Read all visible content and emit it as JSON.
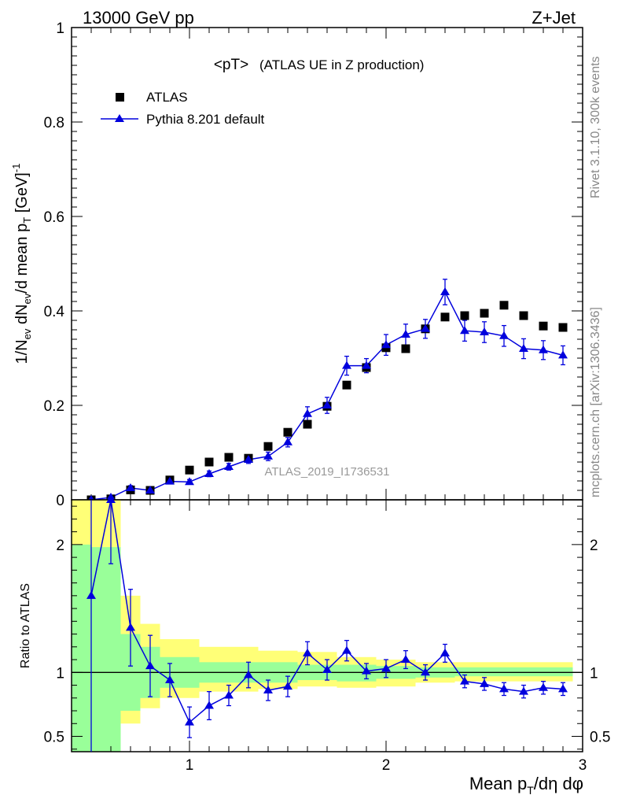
{
  "header": {
    "left": "13000 GeV pp",
    "right": "Z+Jet"
  },
  "title": "<pT>",
  "subtitle": "(ATLAS UE in Z production)",
  "watermark": "ATLAS_2019_I1736531",
  "side_top": "Rivet 3.1.10,  300k events",
  "side_bottom": "mcplots.cern.ch [arXiv:1306.3436]",
  "colors": {
    "mc": "#0000dd",
    "yellow": "#ffff77",
    "green": "#99ff99",
    "data": "#000000"
  },
  "chart_data": [
    {
      "type": "scatter",
      "ylabel": "1/N_ev dN_ev/d mean p_T [GeV]^-1",
      "ylim": [
        0,
        1
      ],
      "xlim": [
        0.4,
        3.0
      ],
      "yticks": [
        0,
        0.2,
        0.4,
        0.6,
        0.8,
        1
      ],
      "ytick_labels": [
        "0",
        "0.2",
        "0.4",
        "0.6",
        "0.8",
        "1"
      ],
      "legend": {
        "position": "top-left",
        "entries": [
          "ATLAS",
          "Pythia 8.201 default"
        ]
      },
      "x": [
        0.5,
        0.6,
        0.7,
        0.8,
        0.9,
        1.0,
        1.1,
        1.2,
        1.3,
        1.4,
        1.5,
        1.6,
        1.7,
        1.8,
        1.9,
        2.0,
        2.1,
        2.2,
        2.3,
        2.4,
        2.5,
        2.6,
        2.7,
        2.8,
        2.9
      ],
      "series": [
        {
          "name": "ATLAS",
          "values": [
            0.0,
            0.002,
            0.021,
            0.02,
            0.042,
            0.063,
            0.08,
            0.09,
            0.088,
            0.113,
            0.143,
            0.16,
            0.198,
            0.243,
            0.28,
            0.322,
            0.32,
            0.362,
            0.387,
            0.39,
            0.395,
            0.412,
            0.39,
            0.368,
            0.365
          ]
        },
        {
          "name": "Pythia 8.201 default",
          "values": [
            0.0,
            0.005,
            0.025,
            0.02,
            0.039,
            0.038,
            0.055,
            0.07,
            0.085,
            0.092,
            0.122,
            0.182,
            0.2,
            0.284,
            0.284,
            0.328,
            0.35,
            0.362,
            0.44,
            0.358,
            0.355,
            0.347,
            0.32,
            0.317,
            0.306
          ],
          "errors": [
            0.0,
            0.002,
            0.005,
            0.004,
            0.005,
            0.005,
            0.006,
            0.007,
            0.008,
            0.009,
            0.01,
            0.015,
            0.017,
            0.02,
            0.015,
            0.022,
            0.022,
            0.02,
            0.027,
            0.022,
            0.022,
            0.022,
            0.021,
            0.02,
            0.02
          ]
        }
      ]
    },
    {
      "type": "line",
      "xlabel": "Mean p_T/dη dφ",
      "ylabel": "Ratio to ATLAS",
      "ylim": [
        0.38,
        2.35
      ],
      "xlim": [
        0.4,
        3.0
      ],
      "xticks": [
        1,
        2,
        3
      ],
      "xtick_labels": [
        "1",
        "2",
        "3"
      ],
      "yticks": [
        0.5,
        1,
        2
      ],
      "ytick_labels": [
        "0.5",
        "1",
        "2"
      ],
      "x": [
        0.5,
        0.6,
        0.7,
        0.8,
        0.9,
        1.0,
        1.1,
        1.2,
        1.3,
        1.4,
        1.5,
        1.6,
        1.7,
        1.8,
        1.9,
        2.0,
        2.1,
        2.2,
        2.3,
        2.4,
        2.5,
        2.6,
        2.7,
        2.8,
        2.9
      ],
      "ratio": [
        1.6,
        2.35,
        1.35,
        1.05,
        0.94,
        0.61,
        0.74,
        0.82,
        0.98,
        0.86,
        0.89,
        1.15,
        1.02,
        1.17,
        1.01,
        1.03,
        1.1,
        1.0,
        1.15,
        0.93,
        0.91,
        0.87,
        0.85,
        0.88,
        0.87
      ],
      "ratio_errors": [
        1.3,
        0.5,
        0.3,
        0.24,
        0.13,
        0.12,
        0.11,
        0.08,
        0.1,
        0.08,
        0.08,
        0.09,
        0.08,
        0.08,
        0.06,
        0.07,
        0.07,
        0.06,
        0.07,
        0.05,
        0.05,
        0.05,
        0.05,
        0.05,
        0.05
      ],
      "band_green": [
        [
          0.4,
          0.5,
          0.3,
          2.0
        ],
        [
          0.5,
          0.6,
          0.3,
          1.98
        ],
        [
          0.6,
          0.65,
          0.3,
          1.98
        ],
        [
          0.65,
          0.75,
          0.7,
          1.3
        ],
        [
          0.75,
          0.85,
          0.8,
          1.2
        ],
        [
          0.85,
          1.05,
          0.88,
          1.12
        ],
        [
          1.05,
          1.55,
          0.92,
          1.08
        ],
        [
          1.55,
          1.75,
          0.94,
          1.06
        ],
        [
          1.75,
          1.95,
          0.93,
          1.06
        ],
        [
          1.95,
          2.15,
          0.95,
          1.05
        ],
        [
          2.15,
          2.35,
          0.96,
          1.04
        ],
        [
          2.35,
          2.95,
          0.97,
          1.04
        ]
      ],
      "band_yellow": [
        [
          0.4,
          0.65,
          0.3,
          2.35
        ],
        [
          0.65,
          0.75,
          0.6,
          1.6
        ],
        [
          0.75,
          0.85,
          0.72,
          1.38
        ],
        [
          0.85,
          1.05,
          0.8,
          1.26
        ],
        [
          1.05,
          1.35,
          0.85,
          1.2
        ],
        [
          1.35,
          1.55,
          0.87,
          1.17
        ],
        [
          1.55,
          1.75,
          0.89,
          1.16
        ],
        [
          1.75,
          1.95,
          0.88,
          1.12
        ],
        [
          1.95,
          2.15,
          0.89,
          1.1
        ],
        [
          2.15,
          2.35,
          0.92,
          1.08
        ],
        [
          2.35,
          2.95,
          0.93,
          1.08
        ]
      ]
    }
  ]
}
